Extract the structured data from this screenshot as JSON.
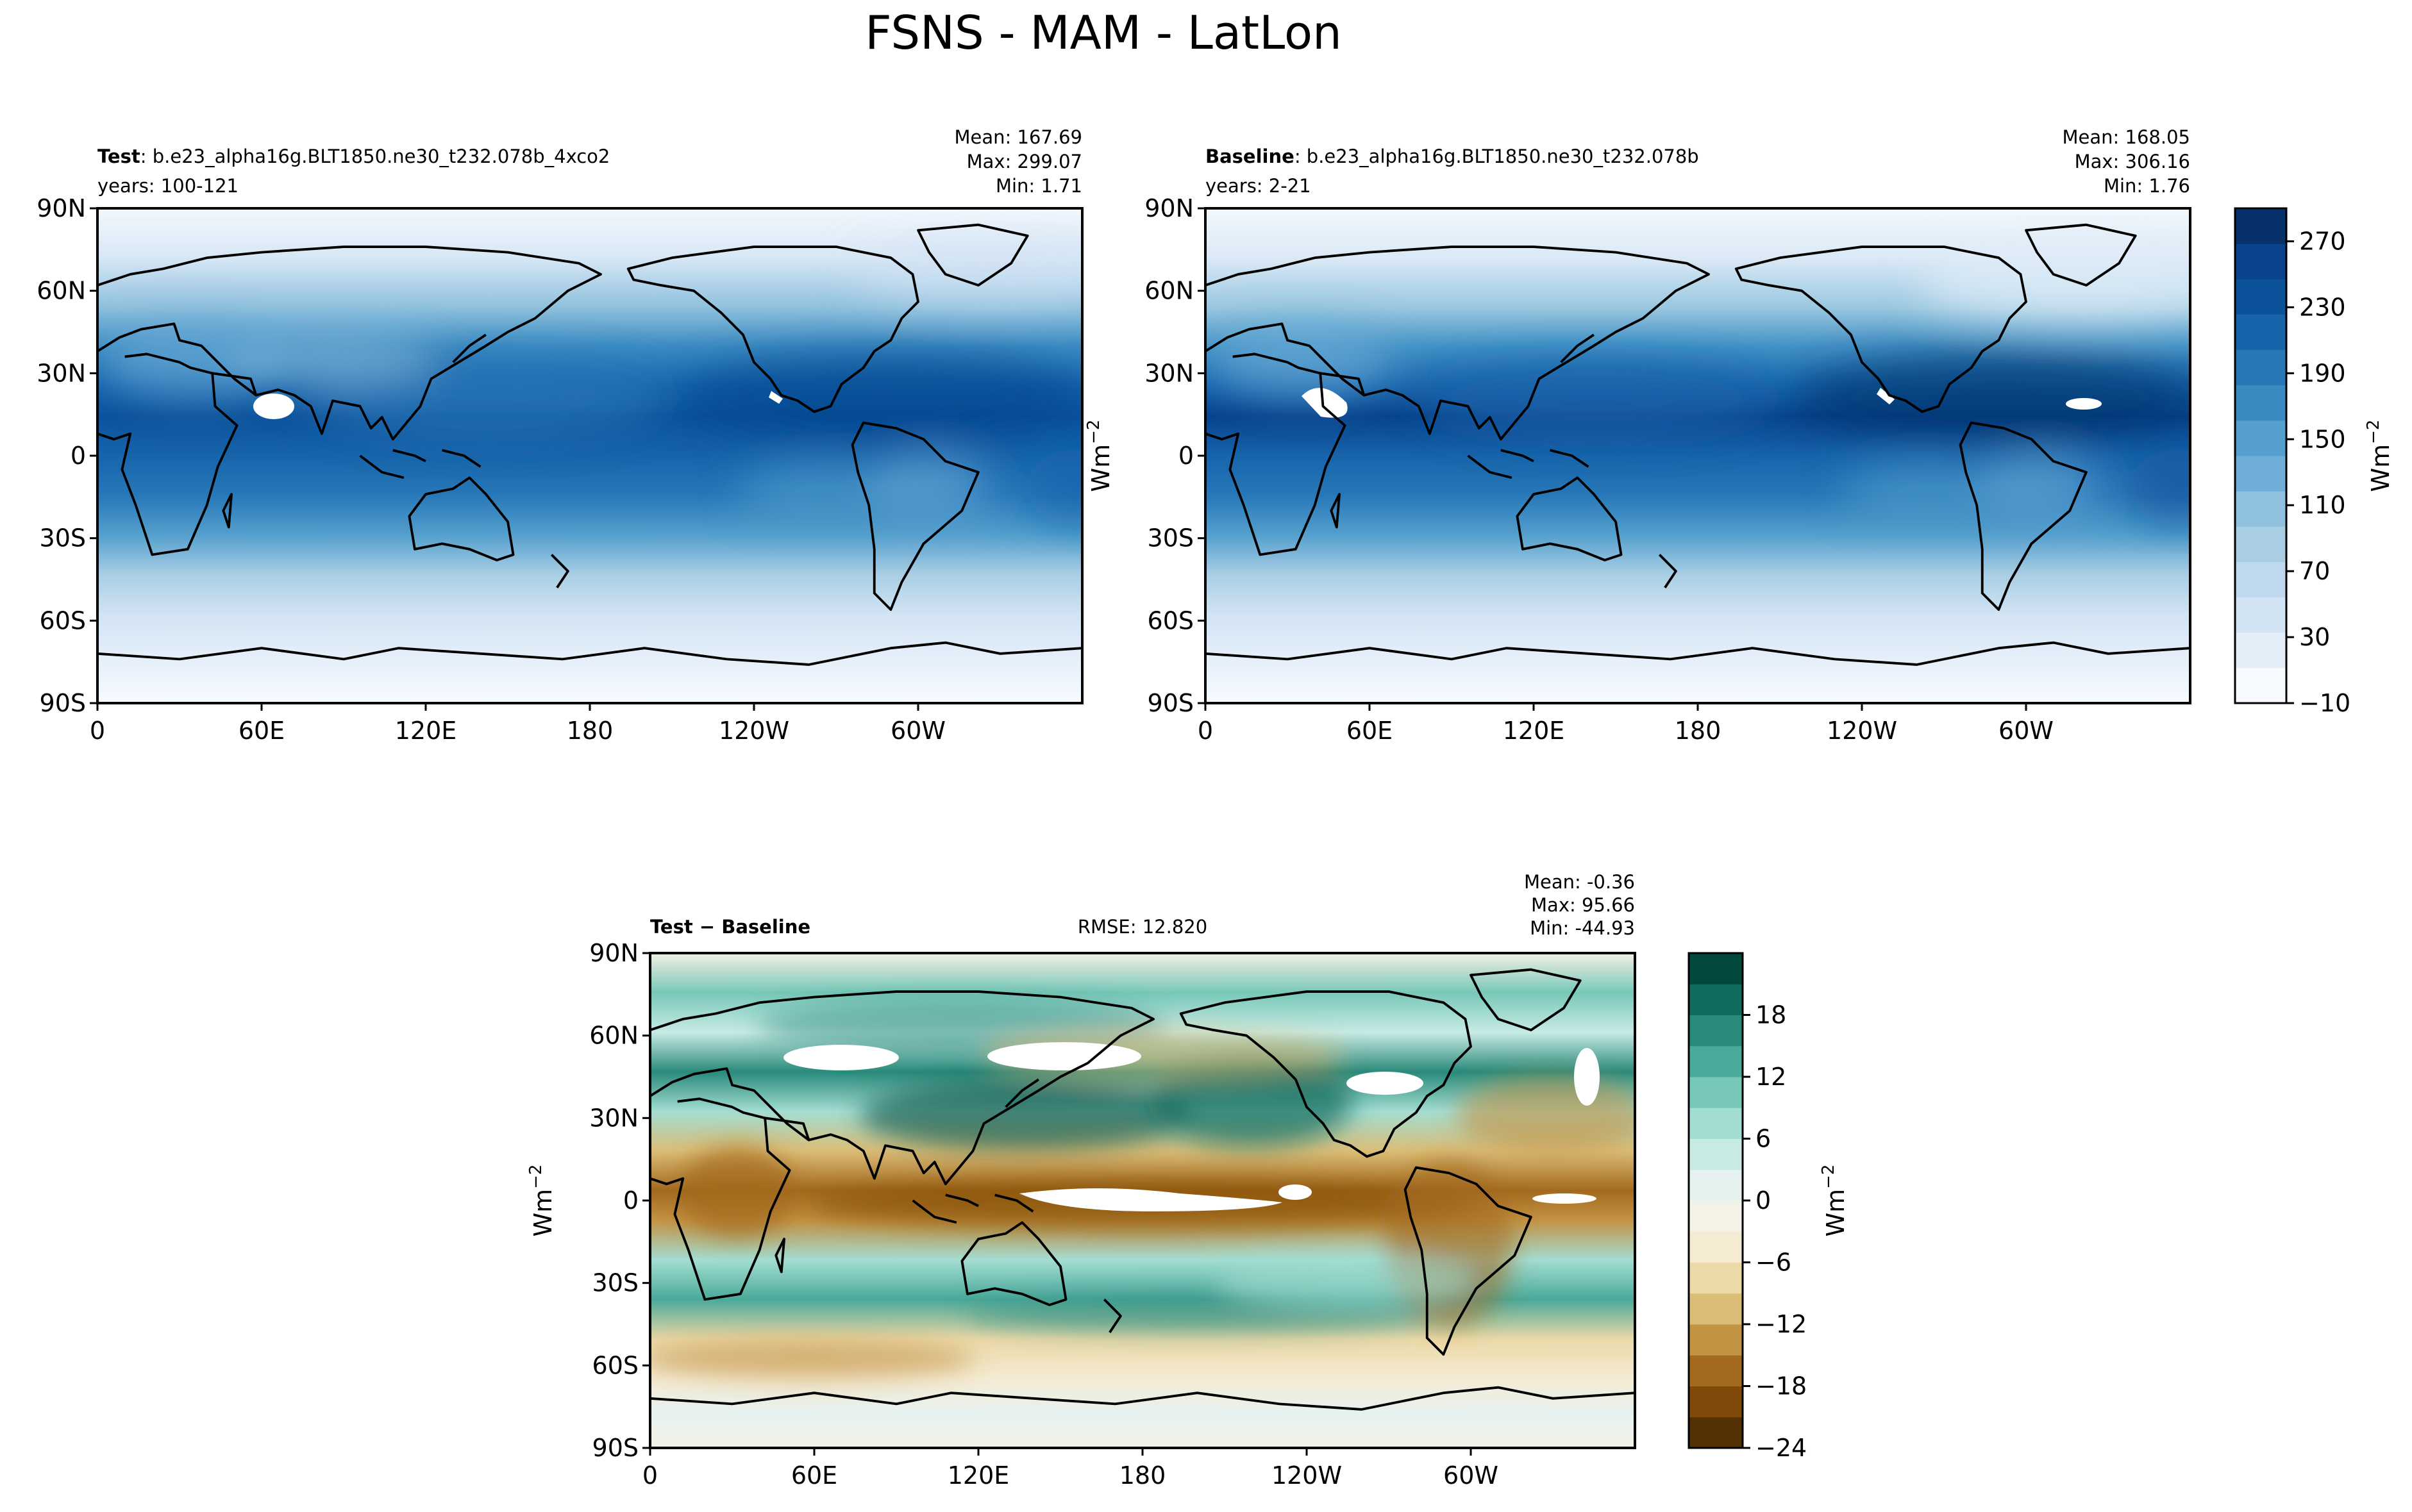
{
  "figure_title": "FSNS - MAM - LatLon",
  "panels": [
    {
      "id": "test",
      "label_bold": "Test",
      "label_rest": ": b.e23_alpha16g.BLT1850.ne30_t232.078b_4xco2",
      "years": "years: 100-121",
      "stats": [
        "Mean: 167.69",
        "Max: 299.07",
        "Min:  1.71"
      ]
    },
    {
      "id": "baseline",
      "label_bold": "Baseline",
      "label_rest": ": b.e23_alpha16g.BLT1850.ne30_t232.078b",
      "years": "years: 2-21",
      "stats": [
        "Mean: 168.05",
        "Max: 306.16",
        "Min:  1.76"
      ]
    },
    {
      "id": "diff",
      "label_bold": "Test − Baseline",
      "rmse": "RMSE: 12.820",
      "stats": [
        "Mean: -0.36",
        "Max: 95.66",
        "Min: -44.93"
      ]
    }
  ],
  "axis": {
    "lat_ticks": [
      "90N",
      "60N",
      "30N",
      "0",
      "30S",
      "60S",
      "90S"
    ],
    "lon_ticks": [
      "0",
      "60E",
      "120E",
      "180",
      "120W",
      "60W"
    ],
    "units_label": "Wm",
    "units_exp": "−2"
  },
  "colorbars": {
    "main": {
      "ticks": [
        "270",
        "230",
        "190",
        "150",
        "110",
        "70",
        "30",
        "−10"
      ],
      "levels": [
        -10,
        10,
        30,
        50,
        70,
        90,
        110,
        130,
        150,
        170,
        190,
        210,
        230,
        250,
        270,
        290
      ],
      "colors": [
        "#f7fbff",
        "#e3eef9",
        "#d2e3f3",
        "#c0d8ed",
        "#a9cee4",
        "#8fc1de",
        "#6eaed8",
        "#549fcd",
        "#3b8bc2",
        "#2878b8",
        "#1764ab",
        "#0b529b",
        "#08438c",
        "#08306b"
      ]
    },
    "diff": {
      "ticks": [
        "18",
        "12",
        "6",
        "0",
        "−6",
        "−12",
        "−18",
        "−24"
      ],
      "colors": [
        "#543005",
        "#7f4a0a",
        "#a36a1f",
        "#c39344",
        "#dbbd77",
        "#ebd9a8",
        "#f5ebd3",
        "#f4f1e6",
        "#e6f2f0",
        "#c7eae5",
        "#a3ddd2",
        "#78c8b9",
        "#4ba99a",
        "#2a8a7b",
        "#0f6b5d",
        "#01493d"
      ]
    }
  },
  "chart_data": [
    {
      "type": "heatmap",
      "title": "Test: b.e23_alpha16g.BLT1850.ne30_t232.078b_4xco2",
      "variable": "FSNS",
      "season": "MAM",
      "units": "Wm^-2",
      "mean": 167.69,
      "max": 299.07,
      "min": 1.71,
      "xlim": [
        0,
        360
      ],
      "ylim": [
        -90,
        90
      ],
      "colorbar_range": [
        -10,
        290
      ]
    },
    {
      "type": "heatmap",
      "title": "Baseline: b.e23_alpha16g.BLT1850.ne30_t232.078b",
      "variable": "FSNS",
      "season": "MAM",
      "units": "Wm^-2",
      "mean": 168.05,
      "max": 306.16,
      "min": 1.76,
      "xlim": [
        0,
        360
      ],
      "ylim": [
        -90,
        90
      ],
      "colorbar_range": [
        -10,
        290
      ]
    },
    {
      "type": "heatmap",
      "title": "Test - Baseline",
      "variable": "FSNS",
      "season": "MAM",
      "units": "Wm^-2",
      "mean": -0.36,
      "max": 95.66,
      "min": -44.93,
      "rmse": 12.82,
      "xlim": [
        0,
        360
      ],
      "ylim": [
        -90,
        90
      ],
      "colorbar_range": [
        -24,
        24
      ]
    }
  ]
}
